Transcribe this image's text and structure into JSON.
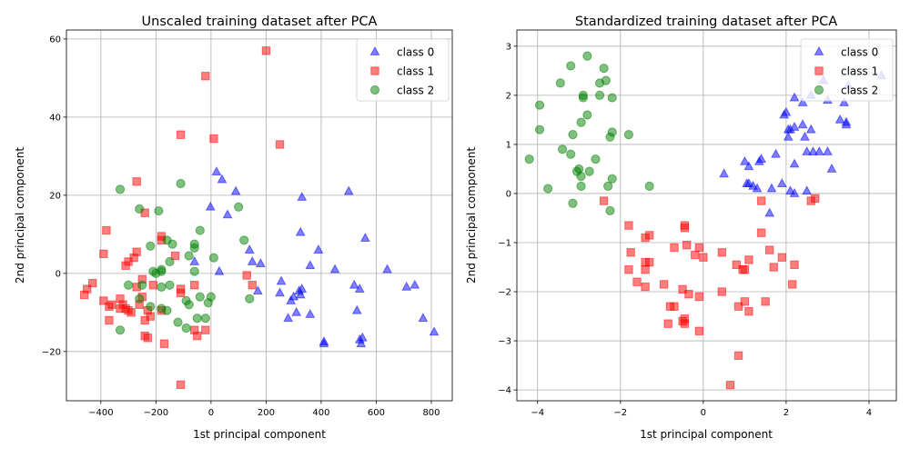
{
  "chart_data": [
    {
      "type": "scatter",
      "title": "Unscaled training dataset after PCA",
      "xlabel": "1st principal component",
      "ylabel": "2nd principal component",
      "xlim": [
        -525,
        876
      ],
      "ylim": [
        -32.6,
        62.3
      ],
      "xticks": [
        -400,
        -200,
        0,
        200,
        400,
        600,
        800
      ],
      "yticks": [
        -20,
        0,
        20,
        40,
        60
      ],
      "grid": true,
      "legend_position": "top-right",
      "series": [
        {
          "name": "class 0",
          "marker": "triangle",
          "color": "#0000ff",
          "points": [
            [
              20,
              26
            ],
            [
              40,
              24
            ],
            [
              -2,
              17
            ],
            [
              90,
              21
            ],
            [
              330,
              19.5
            ],
            [
              325,
              10.5
            ],
            [
              390,
              6
            ],
            [
              140,
              6
            ],
            [
              150,
              3
            ],
            [
              180,
              2.5
            ],
            [
              -60,
              3
            ],
            [
              30,
              0.5
            ],
            [
              60,
              15
            ],
            [
              360,
              2
            ],
            [
              450,
              1
            ],
            [
              500,
              21
            ],
            [
              560,
              9
            ],
            [
              640,
              1
            ],
            [
              710,
              -3.5
            ],
            [
              740,
              -3
            ],
            [
              520,
              -3
            ],
            [
              540,
              -4
            ],
            [
              550,
              -16.5
            ],
            [
              545,
              -18
            ],
            [
              540,
              -17
            ],
            [
              770,
              -11.5
            ],
            [
              810,
              -15
            ],
            [
              410,
              -17.5
            ],
            [
              410,
              -18
            ],
            [
              170,
              -4.5
            ],
            [
              250,
              -5
            ],
            [
              255,
              -2
            ],
            [
              280,
              -11.5
            ],
            [
              300,
              -6
            ],
            [
              310,
              -10
            ],
            [
              320,
              -4.5
            ],
            [
              325,
              -5.5
            ],
            [
              330,
              -4
            ],
            [
              360,
              -10.5
            ],
            [
              530,
              -9.5
            ],
            [
              290,
              -7
            ]
          ]
        },
        {
          "name": "class 1",
          "marker": "square",
          "color": "#ff0000",
          "points": [
            [
              -20,
              50.5
            ],
            [
              200,
              57
            ],
            [
              -110,
              35.5
            ],
            [
              10,
              34.5
            ],
            [
              250,
              33
            ],
            [
              -270,
              23.5
            ],
            [
              -240,
              15.5
            ],
            [
              -380,
              11
            ],
            [
              -390,
              5
            ],
            [
              -270,
              5.5
            ],
            [
              -280,
              4
            ],
            [
              -300,
              3
            ],
            [
              -310,
              2
            ],
            [
              -180,
              9.5
            ],
            [
              -180,
              8.5
            ],
            [
              -130,
              4.5
            ],
            [
              -60,
              -3
            ],
            [
              -110,
              -4
            ],
            [
              -110,
              -5
            ],
            [
              130,
              -0.5
            ],
            [
              150,
              -3
            ],
            [
              -450,
              -4
            ],
            [
              -460,
              -5.5
            ],
            [
              -430,
              -2.5
            ],
            [
              -390,
              -7
            ],
            [
              -370,
              -8.5
            ],
            [
              -360,
              -8
            ],
            [
              -330,
              -6.5
            ],
            [
              -320,
              -8
            ],
            [
              -310,
              -9
            ],
            [
              -330,
              -9
            ],
            [
              -300,
              -9.5
            ],
            [
              -290,
              -10
            ],
            [
              -260,
              -8
            ],
            [
              -250,
              -6
            ],
            [
              -270,
              -3.5
            ],
            [
              -230,
              -9.5
            ],
            [
              -220,
              -11
            ],
            [
              -240,
              -12
            ],
            [
              -370,
              -12
            ],
            [
              -210,
              -3
            ],
            [
              -180,
              -9.5
            ],
            [
              -60,
              -14.5
            ],
            [
              -50,
              -16
            ],
            [
              -20,
              -14.5
            ],
            [
              -240,
              -16
            ],
            [
              -230,
              -16.5
            ],
            [
              -170,
              -18
            ],
            [
              -110,
              -28.5
            ],
            [
              -250,
              -1.5
            ]
          ]
        },
        {
          "name": "class 2",
          "marker": "circle",
          "color": "#008000",
          "points": [
            [
              -330,
              21.5
            ],
            [
              -110,
              23
            ],
            [
              -260,
              16.5
            ],
            [
              -190,
              16
            ],
            [
              -160,
              8.5
            ],
            [
              -140,
              7.5
            ],
            [
              -220,
              7
            ],
            [
              -60,
              6.5
            ],
            [
              -60,
              7.5
            ],
            [
              -40,
              11
            ],
            [
              10,
              4
            ],
            [
              -80,
              4.5
            ],
            [
              120,
              8.5
            ],
            [
              100,
              17
            ],
            [
              -180,
              1
            ],
            [
              -200,
              0
            ],
            [
              -210,
              0.5
            ],
            [
              -250,
              -3
            ],
            [
              -260,
              -6.5
            ],
            [
              -220,
              -8.5
            ],
            [
              -300,
              -3
            ],
            [
              -330,
              -14.5
            ],
            [
              -180,
              -3.5
            ],
            [
              -150,
              -3
            ],
            [
              -90,
              -7
            ],
            [
              -80,
              -8
            ],
            [
              -40,
              -6
            ],
            [
              -10,
              -7.5
            ],
            [
              0,
              -6
            ],
            [
              -120,
              -12.5
            ],
            [
              -90,
              -14
            ],
            [
              -50,
              -11.5
            ],
            [
              -20,
              -11.5
            ],
            [
              -160,
              -9.5
            ],
            [
              -180,
              -9
            ],
            [
              140,
              -6.5
            ],
            [
              -150,
              3
            ],
            [
              -180,
              0.5
            ],
            [
              -60,
              0.5
            ]
          ]
        }
      ]
    },
    {
      "type": "scatter",
      "title": "Standardized training dataset after PCA",
      "xlabel": "1st principal component",
      "ylabel": "2nd principal component",
      "xlim": [
        -4.5,
        4.66
      ],
      "ylim": [
        -4.22,
        3.33
      ],
      "xticks": [
        -4,
        -2,
        0,
        2,
        4
      ],
      "yticks": [
        -4,
        -3,
        -2,
        -1,
        0,
        1,
        2,
        3
      ],
      "grid": true,
      "legend_position": "top-right",
      "series": [
        {
          "name": "class 0",
          "marker": "triangle",
          "color": "#0000ff",
          "points": [
            [
              2.9,
              2.3
            ],
            [
              2.6,
              2.0
            ],
            [
              2.2,
              1.95
            ],
            [
              2.6,
              1.3
            ],
            [
              2.4,
              1.85
            ],
            [
              3.0,
              1.9
            ],
            [
              3.4,
              1.85
            ],
            [
              3.3,
              1.5
            ],
            [
              3.45,
              1.4
            ],
            [
              3.45,
              1.45
            ],
            [
              2.4,
              1.4
            ],
            [
              2.2,
              1.35
            ],
            [
              2.1,
              1.3
            ],
            [
              1.95,
              1.6
            ],
            [
              2.0,
              1.65
            ],
            [
              2.05,
              1.3
            ],
            [
              2.8,
              0.85
            ],
            [
              3.0,
              0.85
            ],
            [
              2.65,
              0.85
            ],
            [
              2.5,
              0.85
            ],
            [
              2.2,
              0.6
            ],
            [
              2.05,
              1.15
            ],
            [
              2.45,
              1.15
            ],
            [
              1.75,
              0.8
            ],
            [
              1.4,
              0.7
            ],
            [
              1.0,
              0.65
            ],
            [
              1.35,
              0.65
            ],
            [
              1.1,
              0.55
            ],
            [
              0.5,
              0.4
            ],
            [
              1.05,
              0.2
            ],
            [
              1.1,
              0.2
            ],
            [
              1.2,
              0.15
            ],
            [
              1.3,
              0.1
            ],
            [
              1.65,
              0.1
            ],
            [
              1.9,
              0.2
            ],
            [
              2.1,
              0.05
            ],
            [
              2.2,
              0.0
            ],
            [
              2.5,
              0.05
            ],
            [
              3.1,
              0.5
            ],
            [
              1.6,
              -0.4
            ],
            [
              4.3,
              2.4
            ],
            [
              3.5,
              2.2
            ]
          ]
        },
        {
          "name": "class 1",
          "marker": "square",
          "color": "#ff0000",
          "points": [
            [
              2.7,
              -0.1
            ],
            [
              2.6,
              -0.15
            ],
            [
              -2.4,
              -0.15
            ],
            [
              -0.45,
              -0.65
            ],
            [
              -0.45,
              -0.7
            ],
            [
              -1.8,
              -0.65
            ],
            [
              -1.75,
              -1.2
            ],
            [
              -1.4,
              -0.9
            ],
            [
              -1.3,
              -0.85
            ],
            [
              1.4,
              -0.15
            ],
            [
              1.4,
              -0.8
            ],
            [
              -0.1,
              -1.1
            ],
            [
              -0.4,
              -1.05
            ],
            [
              -0.7,
              -1.1
            ],
            [
              -0.2,
              -1.25
            ],
            [
              0,
              -1.3
            ],
            [
              0.45,
              -1.2
            ],
            [
              0.8,
              -1.45
            ],
            [
              1.0,
              -1.55
            ],
            [
              0.95,
              -1.55
            ],
            [
              1.1,
              -1.35
            ],
            [
              1.6,
              -1.15
            ],
            [
              1.9,
              -1.3
            ],
            [
              1.7,
              -1.5
            ],
            [
              2.2,
              -1.45
            ],
            [
              2.15,
              -1.85
            ],
            [
              -1.4,
              -1.4
            ],
            [
              -1.4,
              -1.55
            ],
            [
              -1.3,
              -1.4
            ],
            [
              -1.8,
              -1.55
            ],
            [
              -1.6,
              -1.8
            ],
            [
              -1.4,
              -1.9
            ],
            [
              -0.95,
              -1.85
            ],
            [
              -0.5,
              -1.95
            ],
            [
              -0.35,
              -2.05
            ],
            [
              -0.1,
              -2.1
            ],
            [
              0.45,
              -2.0
            ],
            [
              -0.8,
              -2.3
            ],
            [
              -0.7,
              -2.3
            ],
            [
              -0.5,
              -2.6
            ],
            [
              -0.45,
              -2.55
            ],
            [
              -0.45,
              -2.65
            ],
            [
              -0.85,
              -2.65
            ],
            [
              -0.1,
              -2.8
            ],
            [
              0.85,
              -2.3
            ],
            [
              1.0,
              -2.2
            ],
            [
              1.1,
              -2.4
            ],
            [
              1.5,
              -2.2
            ],
            [
              0.85,
              -3.3
            ],
            [
              0.65,
              -3.9
            ]
          ]
        },
        {
          "name": "class 2",
          "marker": "circle",
          "color": "#008000",
          "points": [
            [
              -2.8,
              2.8
            ],
            [
              -3.2,
              2.6
            ],
            [
              -2.4,
              2.55
            ],
            [
              -2.35,
              2.3
            ],
            [
              -2.5,
              2.25
            ],
            [
              -3.45,
              2.25
            ],
            [
              -3.95,
              1.8
            ],
            [
              -2.9,
              2.0
            ],
            [
              -2.9,
              1.95
            ],
            [
              -2.5,
              2.0
            ],
            [
              -2.2,
              1.95
            ],
            [
              -2.8,
              1.6
            ],
            [
              -2.95,
              1.45
            ],
            [
              -3.15,
              1.2
            ],
            [
              -3.95,
              1.3
            ],
            [
              -2.2,
              1.25
            ],
            [
              -2.25,
              1.15
            ],
            [
              -1.8,
              1.2
            ],
            [
              -3.4,
              0.9
            ],
            [
              -3.2,
              0.8
            ],
            [
              -2.6,
              0.7
            ],
            [
              -3.05,
              0.45
            ],
            [
              -3.0,
              0.5
            ],
            [
              -2.95,
              0.35
            ],
            [
              -2.75,
              0.45
            ],
            [
              -2.2,
              0.3
            ],
            [
              -2.95,
              0.15
            ],
            [
              -2.3,
              0.15
            ],
            [
              -3.15,
              -0.2
            ],
            [
              -2.25,
              -0.35
            ],
            [
              -1.3,
              0.15
            ],
            [
              -4.2,
              0.7
            ],
            [
              -3.75,
              0.1
            ]
          ]
        }
      ]
    }
  ]
}
